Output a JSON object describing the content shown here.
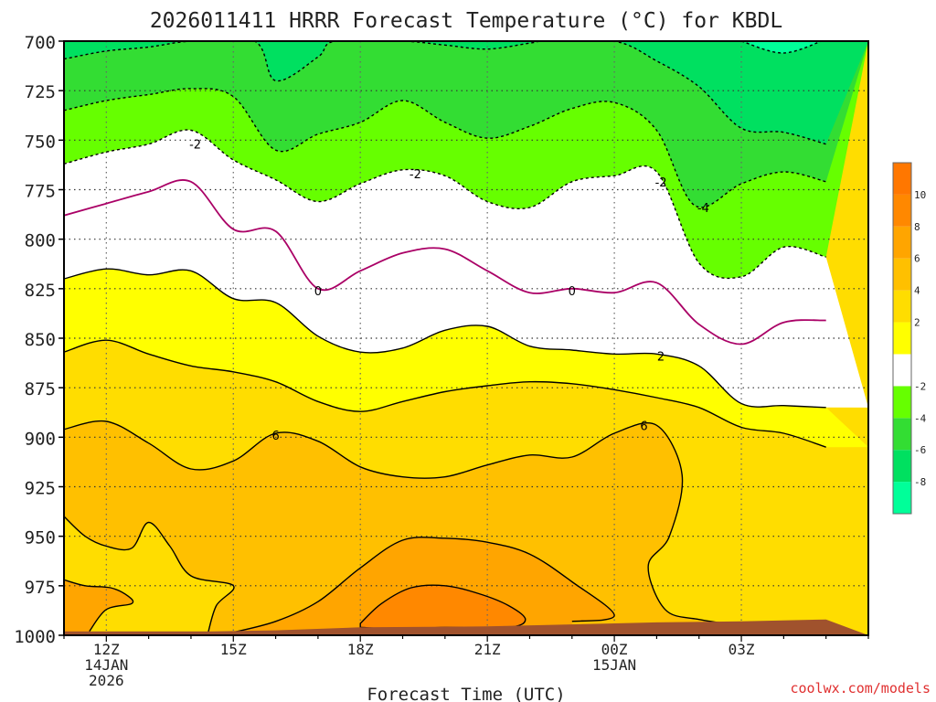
{
  "chart_data": {
    "type": "heatmap",
    "title": "2026011411 HRRR Forecast Temperature (°C) for KBDL",
    "xlabel": "Forecast Time (UTC)",
    "ylabel": "",
    "watermark": "coolwx.com/models",
    "xlim": [
      11,
      30
    ],
    "ylim": [
      1000,
      700
    ],
    "y_ticks": [
      "700",
      "725",
      "750",
      "775",
      "800",
      "825",
      "850",
      "875",
      "900",
      "925",
      "950",
      "975",
      "1000"
    ],
    "x_ticks": [
      {
        "x": 12,
        "lines": [
          "12Z",
          "14JAN",
          "2026"
        ]
      },
      {
        "x": 15,
        "lines": [
          "15Z"
        ]
      },
      {
        "x": 18,
        "lines": [
          "18Z"
        ]
      },
      {
        "x": 21,
        "lines": [
          "21Z"
        ]
      },
      {
        "x": 24,
        "lines": [
          "00Z",
          "15JAN"
        ]
      },
      {
        "x": 27,
        "lines": [
          "03Z"
        ]
      }
    ],
    "grid": true,
    "colorbar": {
      "levels": [
        -10,
        -8,
        -6,
        -4,
        -2,
        0,
        2,
        4,
        6,
        8,
        10,
        12
      ],
      "labels": [
        "-8",
        "-6",
        "-4",
        "-2",
        "2",
        "4",
        "6",
        "8",
        "10"
      ],
      "label_values": [
        -8,
        -6,
        -4,
        -2,
        2,
        4,
        6,
        8,
        10
      ],
      "colors": [
        "#00ff99",
        "#00e060",
        "#33dd33",
        "#66ff00",
        "#ffffff",
        "#ffff00",
        "#ffdd00",
        "#ffc000",
        "#ffa500",
        "#ff8800",
        "#ff7700"
      ]
    },
    "contours": [
      {
        "level": 10,
        "color": "#000000",
        "dashed": false,
        "closed": true,
        "points": [
          [
            18,
            994
          ],
          [
            18.5,
            984
          ],
          [
            19.2,
            976
          ],
          [
            20,
            975
          ],
          [
            20.8,
            979
          ],
          [
            21.5,
            985
          ],
          [
            21.9,
            992
          ],
          [
            21.5,
            996
          ],
          [
            20,
            996
          ],
          [
            19,
            997
          ],
          [
            18,
            996
          ]
        ]
      },
      {
        "level": 8,
        "color": "#000000",
        "dashed": false,
        "closed": false,
        "points": [
          [
            14.9,
            999
          ],
          [
            16,
            993
          ],
          [
            17,
            983
          ],
          [
            18,
            966
          ],
          [
            19,
            952
          ],
          [
            20,
            951
          ],
          [
            21,
            953
          ],
          [
            22,
            959
          ],
          [
            23,
            973
          ],
          [
            24,
            990
          ],
          [
            23,
            993
          ]
        ]
      },
      {
        "level": 8,
        "color": "#000000",
        "dashed": false,
        "closed": false,
        "points": [
          [
            11,
            972
          ],
          [
            11.5,
            975
          ],
          [
            12.1,
            976
          ],
          [
            12.5,
            980
          ],
          [
            12.6,
            984
          ],
          [
            12,
            987
          ],
          [
            11.6,
            998
          ]
        ]
      },
      {
        "level": 6,
        "color": "#000000",
        "dashed": false,
        "closed": false,
        "points": [
          [
            11,
            940
          ],
          [
            11.5,
            950
          ],
          [
            12,
            955
          ],
          [
            12.6,
            956
          ],
          [
            13,
            943
          ],
          [
            13.5,
            955
          ],
          [
            14,
            970
          ],
          [
            15,
            975
          ],
          [
            14.6,
            985
          ],
          [
            14.4,
            999
          ]
        ]
      },
      {
        "level": 6,
        "color": "#000000",
        "dashed": false,
        "closed": false,
        "points": [
          [
            11,
            896
          ],
          [
            12,
            892
          ],
          [
            13,
            903
          ],
          [
            14,
            916
          ],
          [
            15,
            912
          ],
          [
            16,
            898
          ],
          [
            17,
            902
          ],
          [
            18,
            915
          ],
          [
            19,
            920
          ],
          [
            20,
            920
          ],
          [
            21,
            914
          ],
          [
            22,
            909
          ],
          [
            23,
            910
          ],
          [
            24,
            898
          ],
          [
            25,
            894
          ],
          [
            25.6,
            919
          ],
          [
            25.3,
            950
          ],
          [
            24.8,
            965
          ],
          [
            25.2,
            987
          ],
          [
            26,
            992
          ],
          [
            27,
            995
          ]
        ]
      },
      {
        "level": 4,
        "color": "#000000",
        "dashed": false,
        "closed": false,
        "points": [
          [
            11,
            857
          ],
          [
            12,
            851
          ],
          [
            13,
            858
          ],
          [
            14,
            864
          ],
          [
            15,
            867
          ],
          [
            16,
            872
          ],
          [
            17,
            882
          ],
          [
            18,
            887
          ],
          [
            19,
            882
          ],
          [
            20,
            877
          ],
          [
            21,
            874
          ],
          [
            22,
            872
          ],
          [
            23,
            873
          ],
          [
            24,
            876
          ],
          [
            25,
            880
          ],
          [
            26,
            885
          ],
          [
            27,
            895
          ],
          [
            28,
            898
          ],
          [
            29,
            905
          ]
        ]
      },
      {
        "level": 2,
        "color": "#000000",
        "dashed": false,
        "closed": false,
        "points": [
          [
            11,
            820
          ],
          [
            12,
            815
          ],
          [
            13,
            818
          ],
          [
            14,
            816
          ],
          [
            15,
            830
          ],
          [
            16,
            832
          ],
          [
            17,
            849
          ],
          [
            18,
            857
          ],
          [
            19,
            855
          ],
          [
            20,
            846
          ],
          [
            21,
            844
          ],
          [
            22,
            854
          ],
          [
            23,
            856
          ],
          [
            24,
            858
          ],
          [
            25,
            858
          ],
          [
            26,
            864
          ],
          [
            27,
            883
          ],
          [
            28,
            884
          ],
          [
            29,
            885
          ]
        ]
      },
      {
        "level": 0,
        "color": "#aa0066",
        "dashed": false,
        "closed": false,
        "points": [
          [
            11,
            788
          ],
          [
            12,
            782
          ],
          [
            13,
            776
          ],
          [
            14,
            771
          ],
          [
            15,
            795
          ],
          [
            16,
            796
          ],
          [
            17,
            825
          ],
          [
            18,
            816
          ],
          [
            19,
            807
          ],
          [
            20,
            805
          ],
          [
            21,
            816
          ],
          [
            22,
            827
          ],
          [
            23,
            825
          ],
          [
            24,
            827
          ],
          [
            25,
            822
          ],
          [
            26,
            843
          ],
          [
            27,
            853
          ],
          [
            28,
            842
          ],
          [
            29,
            841
          ]
        ]
      },
      {
        "level": -2,
        "color": "#000000",
        "dashed": true,
        "closed": false,
        "points": [
          [
            11,
            762
          ],
          [
            12,
            756
          ],
          [
            13,
            752
          ],
          [
            14,
            745
          ],
          [
            15,
            760
          ],
          [
            16,
            770
          ],
          [
            17,
            781
          ],
          [
            18,
            772
          ],
          [
            19,
            765
          ],
          [
            20,
            768
          ],
          [
            21,
            781
          ],
          [
            22,
            784
          ],
          [
            23,
            771
          ],
          [
            24,
            768
          ],
          [
            25,
            766
          ],
          [
            26,
            812
          ],
          [
            27,
            819
          ],
          [
            28,
            804
          ],
          [
            29,
            809
          ]
        ]
      },
      {
        "level": -4,
        "color": "#000000",
        "dashed": true,
        "closed": false,
        "points": [
          [
            11,
            735
          ],
          [
            12,
            730
          ],
          [
            13,
            727
          ],
          [
            14,
            724
          ],
          [
            15,
            728
          ],
          [
            16,
            755
          ],
          [
            17,
            747
          ],
          [
            18,
            741
          ],
          [
            19,
            730
          ],
          [
            20,
            741
          ],
          [
            21,
            749
          ],
          [
            22,
            743
          ],
          [
            23,
            734
          ],
          [
            24,
            731
          ],
          [
            25,
            745
          ],
          [
            25.9,
            783
          ],
          [
            27,
            772
          ],
          [
            28,
            766
          ],
          [
            29,
            771
          ]
        ]
      },
      {
        "level": -6,
        "color": "#000000",
        "dashed": true,
        "closed": false,
        "points": [
          [
            11,
            709
          ],
          [
            12,
            705
          ],
          [
            13,
            703
          ],
          [
            14,
            700
          ],
          [
            15.5,
            700
          ],
          [
            16,
            720
          ],
          [
            17,
            708
          ],
          [
            17.4,
            700
          ],
          [
            19,
            700
          ],
          [
            20,
            702
          ],
          [
            21,
            704
          ],
          [
            22,
            701
          ],
          [
            22.4,
            700
          ],
          [
            24,
            700
          ],
          [
            25,
            710
          ],
          [
            26,
            723
          ],
          [
            27,
            744
          ],
          [
            28,
            746
          ],
          [
            29,
            752
          ]
        ]
      },
      {
        "level": -8,
        "color": "#000000",
        "dashed": true,
        "closed": false,
        "points": [
          [
            27,
            700
          ],
          [
            28,
            706
          ],
          [
            29,
            699
          ]
        ]
      }
    ],
    "contour_labels": [
      {
        "text": "-2",
        "x": 14.1,
        "y": 752
      },
      {
        "text": "-2",
        "x": 19.3,
        "y": 767
      },
      {
        "text": "-2",
        "x": 25.1,
        "y": 771
      },
      {
        "text": "-4",
        "x": 26.1,
        "y": 784
      },
      {
        "text": "0",
        "x": 17,
        "y": 826
      },
      {
        "text": "0",
        "x": 23,
        "y": 826
      },
      {
        "text": "2",
        "x": 25.1,
        "y": 859
      },
      {
        "text": "6",
        "x": 16,
        "y": 899
      },
      {
        "text": "6",
        "x": 24.7,
        "y": 894
      }
    ],
    "ground": {
      "color": "#a0522d",
      "top": [
        [
          11,
          998
        ],
        [
          14.5,
          998
        ],
        [
          16,
          997.5
        ],
        [
          18,
          996
        ],
        [
          21,
          995.5
        ],
        [
          24,
          994
        ],
        [
          25,
          993.5
        ],
        [
          27,
          993
        ],
        [
          29,
          992
        ]
      ],
      "bottom": 1000
    }
  }
}
